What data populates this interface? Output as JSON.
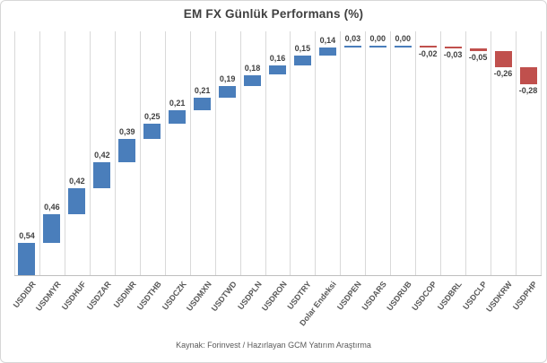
{
  "title": "EM FX Günlük Performans (%)",
  "footer": "Kaynak: Forinvest / Hazırlayan GCM Yatırım Araştırma",
  "colors": {
    "positive_bar": "#4A7EBB",
    "negative_bar": "#C0504D",
    "gridline": "#D9D9D9",
    "axis_line": "#BFBFBF",
    "title_text": "#404040",
    "value_label_text": "#404040",
    "category_label_text": "#595959",
    "source_text": "#595959"
  },
  "chart_data": {
    "type": "bar",
    "subtype": "waterfall",
    "title": "EM FX Günlük Performans (%)",
    "categories": [
      "USDIDR",
      "USDMYR",
      "USDHUF",
      "USDZAR",
      "USDINR",
      "USDTHB",
      "USDCZK",
      "USDMXN",
      "USDTWD",
      "USDPLN",
      "USDRON",
      "USDTRY",
      "Dolar Endeksi",
      "USDPEN",
      "USDARS",
      "USDRUB",
      "USDCOP",
      "USDBRL",
      "USDCLP",
      "USDKRW",
      "USDPHP"
    ],
    "values": [
      0.54,
      0.46,
      0.42,
      0.42,
      0.39,
      0.25,
      0.21,
      0.21,
      0.19,
      0.18,
      0.16,
      0.15,
      0.14,
      0.03,
      0.0,
      0.0,
      -0.02,
      -0.03,
      -0.05,
      -0.26,
      -0.28
    ],
    "value_labels": [
      "0,54",
      "0,46",
      "0,42",
      "0,42",
      "0,39",
      "0,25",
      "0,21",
      "0,21",
      "0,19",
      "0,18",
      "0,16",
      "0,15",
      "0,14",
      "0,03",
      "0,00",
      "0,00",
      "-0,02",
      "-0,03",
      "-0,05",
      "-0,26",
      "-0,28"
    ],
    "xlabel": "",
    "ylabel": "",
    "ylim": [
      0,
      3.75
    ],
    "cumulative_baseline": "each bar starts at cumulative sum of previous values, ascending from 0 at bottom-left",
    "grid": "vertical-only",
    "legend": "none",
    "source_note": "Kaynak: Forinvest / Hazırlayan GCM Yatırım Araştırma"
  }
}
